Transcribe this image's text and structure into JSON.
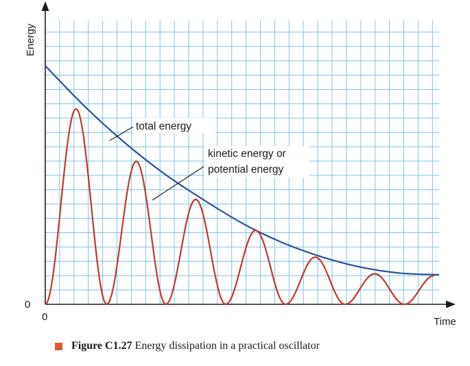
{
  "chart_data": {
    "type": "line",
    "xlabel": "Time",
    "ylabel": "Energy",
    "x_origin_label": "0",
    "y_origin_label": "0",
    "grid": true,
    "legend": "none",
    "series": [
      {
        "name": "total energy",
        "color": "#2a4e9c",
        "points": [
          [
            0,
            1.0
          ],
          [
            1,
            0.83
          ],
          [
            2,
            0.68
          ],
          [
            3,
            0.55
          ],
          [
            4,
            0.44
          ],
          [
            5,
            0.34
          ],
          [
            6,
            0.26
          ],
          [
            7,
            0.2
          ],
          [
            8,
            0.156
          ],
          [
            9,
            0.131
          ],
          [
            10,
            0.124
          ]
        ]
      },
      {
        "name": "kinetic energy or potential energy",
        "color": "#c0392b",
        "peaks": [
          [
            0.78,
            0.82
          ],
          [
            2.31,
            0.6
          ],
          [
            3.84,
            0.44
          ],
          [
            5.35,
            0.31
          ],
          [
            6.86,
            0.198
          ],
          [
            8.37,
            0.128
          ],
          [
            9.87,
            0.12
          ]
        ],
        "zeros": [
          0,
          1.56,
          3.06,
          4.58,
          6.1,
          7.61,
          9.12
        ]
      }
    ],
    "annotations": [
      {
        "text": "total energy",
        "target_series": "total energy"
      },
      {
        "text_lines": [
          "kinetic energy or",
          "potential energy"
        ],
        "target_series": "kinetic energy or potential energy"
      }
    ]
  },
  "caption": {
    "label": "Figure C1.27",
    "text": " Energy dissipation in a practical oscillator"
  }
}
